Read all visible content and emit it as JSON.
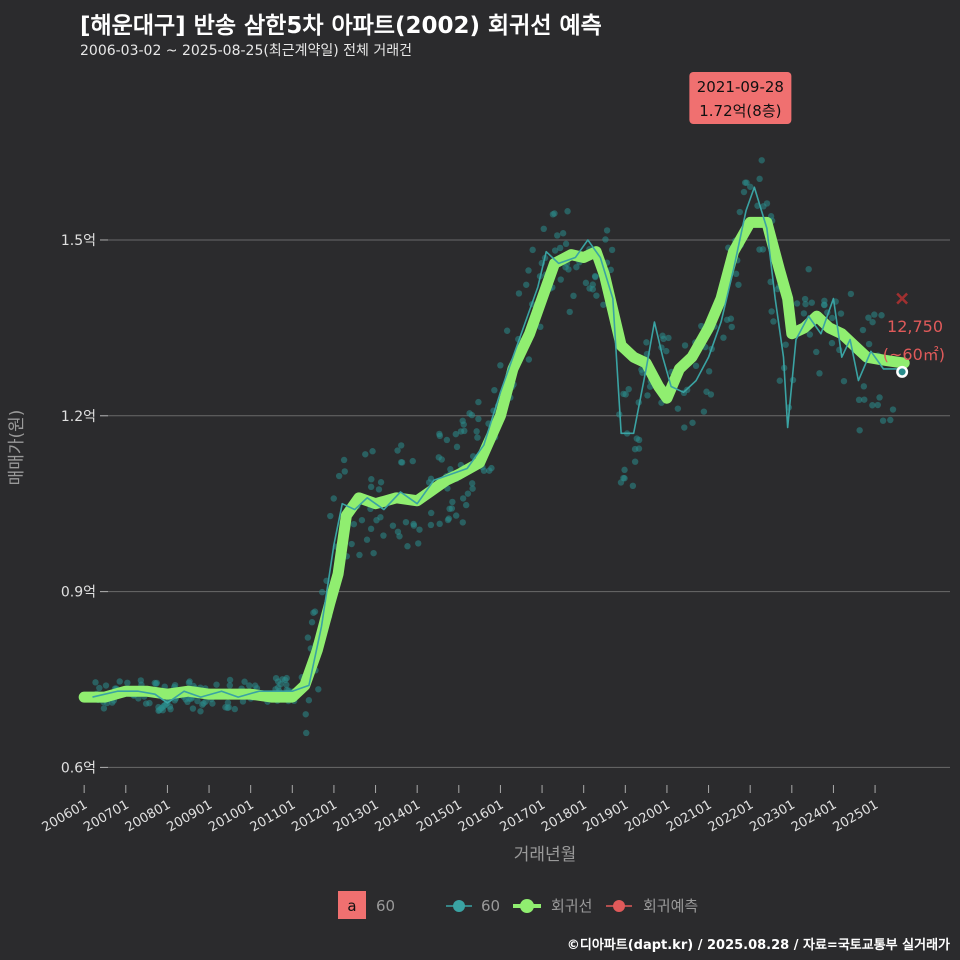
{
  "title": "[해운대구] 반송 삼한5차 아파트(2002) 회귀선 예측",
  "subtitle": "2006-03-02 ~ 2025-08-25(최근계약일) 전체 거래건",
  "caption": "©디아파트(dapt.kr) / 2025.08.28 / 자료=국토교통부 실거래가",
  "colors": {
    "background": "#2b2b2d",
    "scatter": "#2a8c8c",
    "trend": "#3aa3a3",
    "regression": "#90ee70",
    "prediction": "#e05a5a",
    "label_bg": "#f07070"
  },
  "chart_data": {
    "type": "scatter",
    "xlabel": "거래년월",
    "ylabel": "매매가(원)",
    "x_ticks": [
      "200601",
      "200701",
      "200801",
      "200901",
      "201001",
      "201101",
      "201201",
      "201301",
      "201401",
      "201501",
      "201601",
      "201701",
      "201801",
      "201901",
      "202001",
      "202101",
      "202201",
      "202301",
      "202401",
      "202501"
    ],
    "y_ticks": [
      {
        "value": 0.6,
        "label": "0.6억"
      },
      {
        "value": 0.9,
        "label": "0.9억"
      },
      {
        "value": 1.2,
        "label": "1.2억"
      },
      {
        "value": 1.5,
        "label": "1.5억"
      }
    ],
    "xlim": [
      2005.9,
      2026.8
    ],
    "ylim": [
      0.57,
      1.79
    ],
    "regression_line": [
      [
        2006.0,
        0.72
      ],
      [
        2006.5,
        0.72
      ],
      [
        2007.0,
        0.73
      ],
      [
        2007.5,
        0.73
      ],
      [
        2008.0,
        0.725
      ],
      [
        2008.5,
        0.73
      ],
      [
        2009.0,
        0.725
      ],
      [
        2009.5,
        0.725
      ],
      [
        2010.0,
        0.725
      ],
      [
        2010.5,
        0.72
      ],
      [
        2011.0,
        0.72
      ],
      [
        2011.3,
        0.74
      ],
      [
        2011.6,
        0.8
      ],
      [
        2011.9,
        0.88
      ],
      [
        2012.1,
        0.93
      ],
      [
        2012.3,
        1.03
      ],
      [
        2012.6,
        1.06
      ],
      [
        2013.0,
        1.05
      ],
      [
        2013.5,
        1.06
      ],
      [
        2014.0,
        1.055
      ],
      [
        2014.3,
        1.07
      ],
      [
        2014.7,
        1.09
      ],
      [
        2015.0,
        1.1
      ],
      [
        2015.5,
        1.12
      ],
      [
        2016.0,
        1.2
      ],
      [
        2016.3,
        1.28
      ],
      [
        2016.7,
        1.34
      ],
      [
        2017.0,
        1.4
      ],
      [
        2017.3,
        1.46
      ],
      [
        2017.7,
        1.475
      ],
      [
        2018.0,
        1.47
      ],
      [
        2018.3,
        1.48
      ],
      [
        2018.5,
        1.44
      ],
      [
        2018.7,
        1.38
      ],
      [
        2018.9,
        1.32
      ],
      [
        2019.2,
        1.3
      ],
      [
        2019.5,
        1.29
      ],
      [
        2019.8,
        1.25
      ],
      [
        2020.0,
        1.23
      ],
      [
        2020.3,
        1.28
      ],
      [
        2020.6,
        1.3
      ],
      [
        2021.0,
        1.35
      ],
      [
        2021.3,
        1.4
      ],
      [
        2021.6,
        1.48
      ],
      [
        2022.0,
        1.53
      ],
      [
        2022.4,
        1.53
      ],
      [
        2022.7,
        1.45
      ],
      [
        2022.9,
        1.4
      ],
      [
        2023.0,
        1.34
      ],
      [
        2023.3,
        1.35
      ],
      [
        2023.6,
        1.37
      ],
      [
        2023.9,
        1.35
      ],
      [
        2024.2,
        1.34
      ],
      [
        2024.5,
        1.32
      ],
      [
        2024.8,
        1.3
      ],
      [
        2025.2,
        1.295
      ],
      [
        2025.7,
        1.29
      ]
    ],
    "trend_line": [
      [
        2006.2,
        0.72
      ],
      [
        2006.8,
        0.73
      ],
      [
        2007.3,
        0.73
      ],
      [
        2007.7,
        0.725
      ],
      [
        2008.0,
        0.71
      ],
      [
        2008.4,
        0.73
      ],
      [
        2008.8,
        0.72
      ],
      [
        2009.3,
        0.73
      ],
      [
        2009.7,
        0.72
      ],
      [
        2010.2,
        0.73
      ],
      [
        2010.6,
        0.73
      ],
      [
        2011.0,
        0.73
      ],
      [
        2011.4,
        0.74
      ],
      [
        2011.7,
        0.84
      ],
      [
        2012.0,
        0.98
      ],
      [
        2012.2,
        1.05
      ],
      [
        2012.5,
        1.04
      ],
      [
        2012.8,
        1.06
      ],
      [
        2013.2,
        1.04
      ],
      [
        2013.6,
        1.07
      ],
      [
        2014.0,
        1.05
      ],
      [
        2014.4,
        1.09
      ],
      [
        2014.8,
        1.1
      ],
      [
        2015.2,
        1.11
      ],
      [
        2015.6,
        1.15
      ],
      [
        2016.0,
        1.24
      ],
      [
        2016.3,
        1.3
      ],
      [
        2016.6,
        1.36
      ],
      [
        2016.9,
        1.42
      ],
      [
        2017.1,
        1.48
      ],
      [
        2017.4,
        1.46
      ],
      [
        2017.8,
        1.47
      ],
      [
        2018.1,
        1.5
      ],
      [
        2018.4,
        1.47
      ],
      [
        2018.7,
        1.4
      ],
      [
        2018.9,
        1.17
      ],
      [
        2019.2,
        1.17
      ],
      [
        2019.5,
        1.28
      ],
      [
        2019.7,
        1.36
      ],
      [
        2019.9,
        1.3
      ],
      [
        2020.1,
        1.25
      ],
      [
        2020.4,
        1.24
      ],
      [
        2020.7,
        1.26
      ],
      [
        2021.0,
        1.3
      ],
      [
        2021.3,
        1.36
      ],
      [
        2021.6,
        1.45
      ],
      [
        2021.9,
        1.55
      ],
      [
        2022.1,
        1.59
      ],
      [
        2022.4,
        1.52
      ],
      [
        2022.6,
        1.4
      ],
      [
        2022.8,
        1.3
      ],
      [
        2022.9,
        1.18
      ],
      [
        2023.1,
        1.33
      ],
      [
        2023.4,
        1.37
      ],
      [
        2023.7,
        1.34
      ],
      [
        2024.0,
        1.4
      ],
      [
        2024.2,
        1.3
      ],
      [
        2024.4,
        1.33
      ],
      [
        2024.6,
        1.26
      ],
      [
        2024.9,
        1.31
      ],
      [
        2025.2,
        1.28
      ],
      [
        2025.6,
        1.28
      ]
    ],
    "prediction": {
      "x": 2025.65,
      "y": 1.4
    },
    "latest_point": {
      "x": 2025.65,
      "y": 1.275
    },
    "annotations": {
      "peak_date": "2021-09-28",
      "peak_value": "1.72억(8층)",
      "peak_x": 2021.74,
      "peak_y": 1.72,
      "pred_value": "12,750",
      "pred_area": "(~60㎡)"
    },
    "legend": [
      {
        "key": "a",
        "label": "60",
        "type": "text-key"
      },
      {
        "label": "60",
        "type": "series"
      },
      {
        "label": "회귀선",
        "type": "regression"
      },
      {
        "label": "회귀예측",
        "type": "prediction"
      }
    ]
  }
}
